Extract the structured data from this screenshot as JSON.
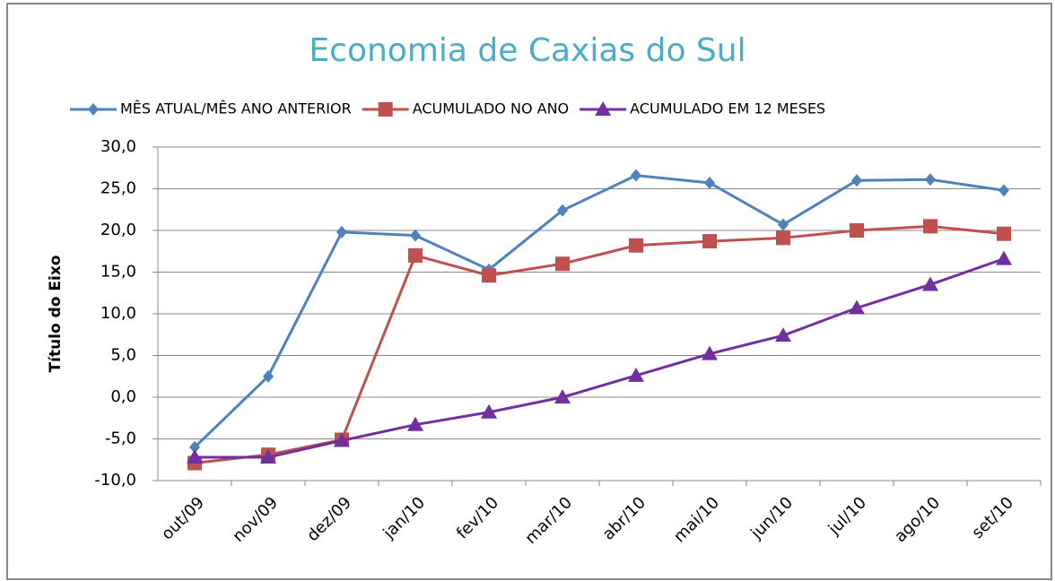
{
  "chart_data": {
    "type": "line",
    "title": "Economia de Caxias do Sul",
    "y_label": "Título do Eixo",
    "categories": [
      "out/09",
      "nov/09",
      "dez/09",
      "jan/10",
      "fev/10",
      "mar/10",
      "abr/10",
      "mai/10",
      "jun/10",
      "jul/10",
      "ago/10",
      "set/10"
    ],
    "series": [
      {
        "name": "MÊS ATUAL/MÊS ANO ANTERIOR",
        "color": "#4f81bd",
        "marker": "diamond",
        "values": [
          -6.0,
          2.5,
          19.8,
          19.4,
          15.3,
          22.4,
          26.6,
          25.7,
          20.7,
          26.0,
          26.1,
          24.8
        ]
      },
      {
        "name": "ACUMULADO NO ANO",
        "color": "#c0504d",
        "marker": "square",
        "values": [
          -7.9,
          -6.9,
          -5.1,
          17.0,
          14.6,
          16.0,
          18.2,
          18.7,
          19.1,
          20.0,
          20.5,
          19.6
        ]
      },
      {
        "name": "ACUMULADO EM 12 MESES",
        "color": "#7030a0",
        "marker": "triangle",
        "values": [
          -7.2,
          -7.2,
          -5.2,
          -3.3,
          -1.8,
          0.0,
          2.6,
          5.2,
          7.4,
          10.7,
          13.5,
          16.6
        ]
      }
    ],
    "ylim": [
      -10,
      30
    ],
    "yticks": [
      {
        "value": -10,
        "label": "-10,0"
      },
      {
        "value": -5,
        "label": "-5,0"
      },
      {
        "value": 0,
        "label": "0,0"
      },
      {
        "value": 5,
        "label": "5,0"
      },
      {
        "value": 10,
        "label": "10,0"
      },
      {
        "value": 15,
        "label": "15,0"
      },
      {
        "value": 20,
        "label": "20,0"
      },
      {
        "value": 25,
        "label": "25,0"
      },
      {
        "value": 30,
        "label": "30,0"
      }
    ],
    "grid": true,
    "legend": "top"
  }
}
